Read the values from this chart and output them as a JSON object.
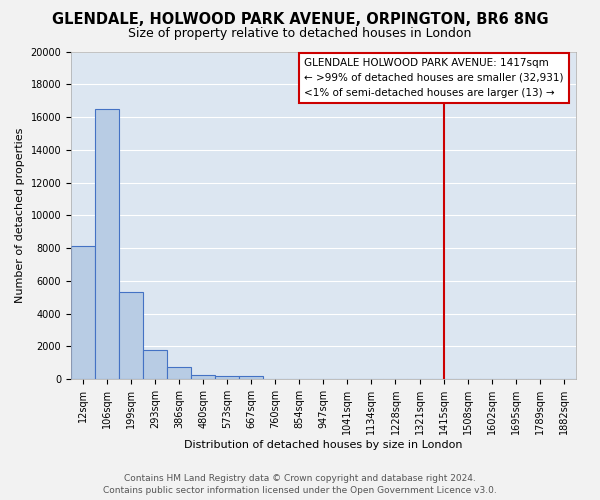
{
  "title": "GLENDALE, HOLWOOD PARK AVENUE, ORPINGTON, BR6 8NG",
  "subtitle": "Size of property relative to detached houses in London",
  "xlabel": "Distribution of detached houses by size in London",
  "ylabel": "Number of detached properties",
  "bin_labels": [
    "12sqm",
    "106sqm",
    "199sqm",
    "293sqm",
    "386sqm",
    "480sqm",
    "573sqm",
    "667sqm",
    "760sqm",
    "854sqm",
    "947sqm",
    "1041sqm",
    "1134sqm",
    "1228sqm",
    "1321sqm",
    "1415sqm",
    "1508sqm",
    "1602sqm",
    "1695sqm",
    "1789sqm",
    "1882sqm"
  ],
  "bar_heights": [
    8100,
    16500,
    5300,
    1800,
    750,
    270,
    200,
    180,
    0,
    0,
    0,
    0,
    0,
    0,
    0,
    0,
    0,
    0,
    0,
    0,
    0
  ],
  "bar_color": "#b8cce4",
  "bar_edge_color": "#4472c4",
  "background_color": "#dce6f1",
  "grid_color": "#ffffff",
  "vline_x": 15.0,
  "vline_color": "#cc0000",
  "annotation_text": "GLENDALE HOLWOOD PARK AVENUE: 1417sqm\n← >99% of detached houses are smaller (32,931)\n<1% of semi-detached houses are larger (13) →",
  "annotation_box_color": "#ffffff",
  "annotation_box_edge": "#cc0000",
  "ylim": [
    0,
    20000
  ],
  "yticks": [
    0,
    2000,
    4000,
    6000,
    8000,
    10000,
    12000,
    14000,
    16000,
    18000,
    20000
  ],
  "footer_line1": "Contains HM Land Registry data © Crown copyright and database right 2024.",
  "footer_line2": "Contains public sector information licensed under the Open Government Licence v3.0.",
  "title_fontsize": 10.5,
  "subtitle_fontsize": 9,
  "axis_label_fontsize": 8,
  "tick_fontsize": 7,
  "annotation_fontsize": 7.5,
  "footer_fontsize": 6.5,
  "fig_bg_color": "#f2f2f2"
}
